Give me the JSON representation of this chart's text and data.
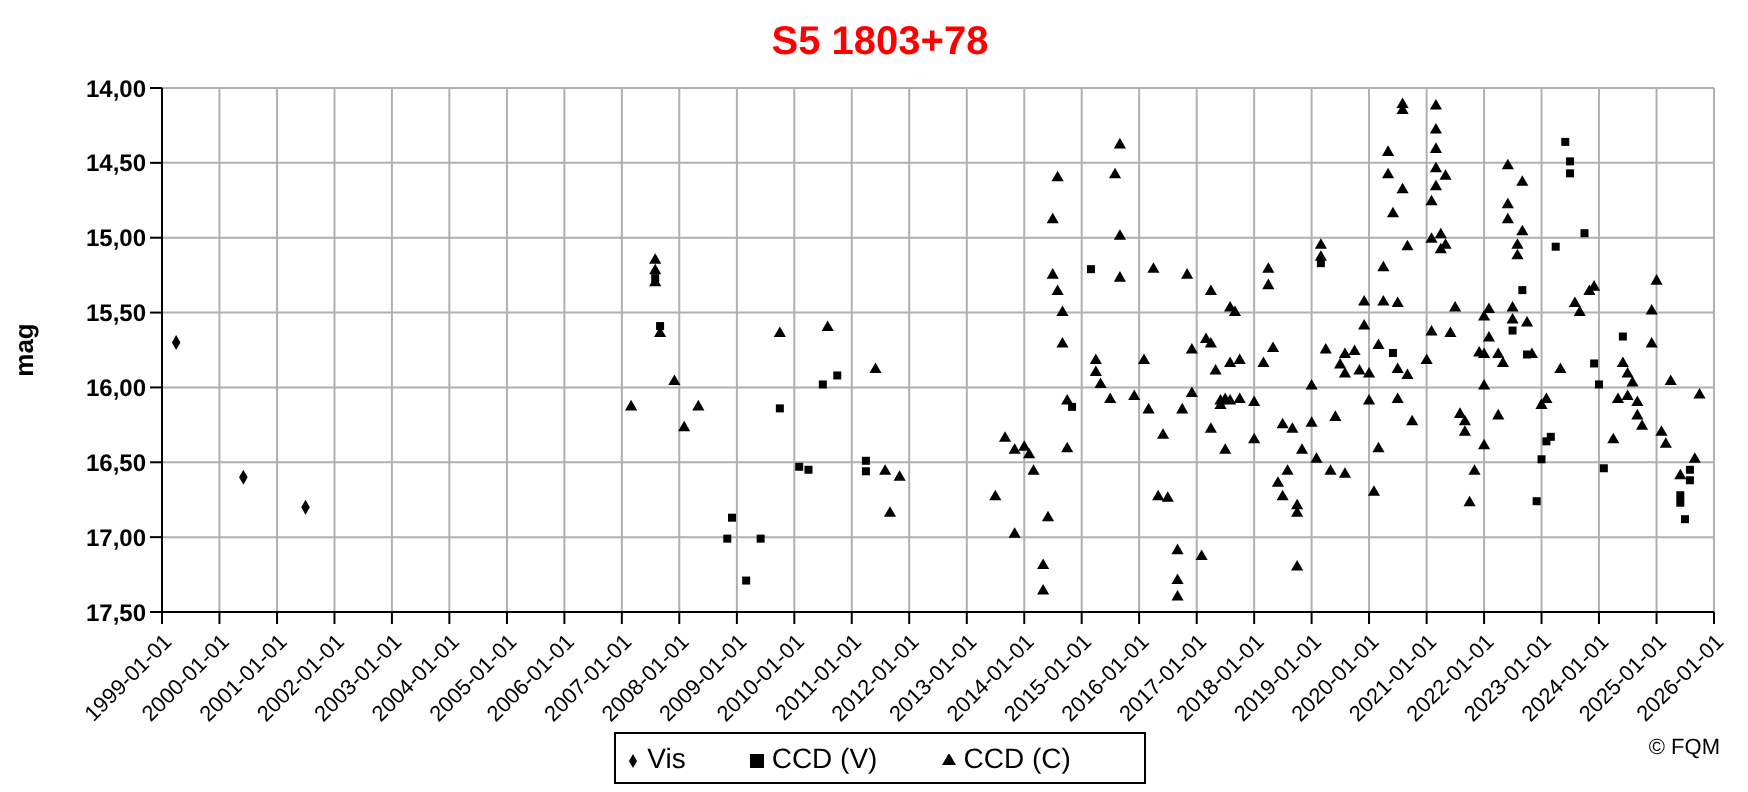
{
  "chart_data": {
    "type": "scatter",
    "title": "S5 1803+78",
    "ylabel": "mag",
    "annotations": [
      "© FQM"
    ],
    "xlim": [
      "1999-01-01",
      "2026-01-01"
    ],
    "xticks": [
      "1999-01-01",
      "2000-01-01",
      "2001-01-01",
      "2002-01-01",
      "2003-01-01",
      "2004-01-01",
      "2005-01-01",
      "2006-01-01",
      "2007-01-01",
      "2008-01-01",
      "2009-01-01",
      "2010-01-01",
      "2011-01-01",
      "2012-01-01",
      "2013-01-01",
      "2014-01-01",
      "2015-01-01",
      "2016-01-01",
      "2017-01-01",
      "2018-01-01",
      "2019-01-01",
      "2020-01-01",
      "2021-01-01",
      "2022-01-01",
      "2023-01-01",
      "2024-01-01",
      "2025-01-01",
      "2026-01-01"
    ],
    "ylim": [
      17.5,
      14
    ],
    "yticks": [
      {
        "value": 14,
        "label": "14,00"
      },
      {
        "value": 14.5,
        "label": "14,50"
      },
      {
        "value": 15,
        "label": "15,00"
      },
      {
        "value": 15.5,
        "label": "15,50"
      },
      {
        "value": 16,
        "label": "16,00"
      },
      {
        "value": 16.5,
        "label": "16,50"
      },
      {
        "value": 17,
        "label": "17,00"
      },
      {
        "value": 17.5,
        "label": "17,50"
      }
    ],
    "grid": true,
    "legend": "bottom",
    "series": [
      {
        "name": "Vis",
        "color": "#000000",
        "marker": "diamond",
        "x": [
          "1999-04",
          "2000-06",
          "2001-07"
        ],
        "values": [
          15.7,
          16.6,
          16.8
        ]
      },
      {
        "name": "CCD (V)",
        "color": "#000000",
        "marker": "square",
        "x": [
          "2007-08",
          "2007-09",
          "2008-11",
          "2008-12",
          "2009-03",
          "2009-06",
          "2009-10",
          "2010-02",
          "2010-04",
          "2010-07",
          "2010-10",
          "2011-04",
          "2011-04",
          "2014-11",
          "2015-03",
          "2019-03",
          "2020-06",
          "2022-07",
          "2022-09",
          "2022-10",
          "2022-12",
          "2023-01",
          "2023-02",
          "2023-03",
          "2023-04",
          "2023-06",
          "2023-07",
          "2023-07",
          "2023-10",
          "2023-12",
          "2024-01",
          "2024-02",
          "2024-06",
          "2025-06",
          "2025-06",
          "2025-07",
          "2025-08",
          "2025-08"
        ],
        "values": [
          15.27,
          15.59,
          17.01,
          16.87,
          17.29,
          17.01,
          16.14,
          16.53,
          16.55,
          15.98,
          15.92,
          16.49,
          16.56,
          16.13,
          15.21,
          15.17,
          15.77,
          15.62,
          15.35,
          15.78,
          16.76,
          16.48,
          16.36,
          16.33,
          15.06,
          14.36,
          14.49,
          14.57,
          14.97,
          15.84,
          15.98,
          16.54,
          15.66,
          16.72,
          16.77,
          16.88,
          16.62,
          16.55
        ]
      },
      {
        "name": "CCD (C)",
        "color": "#000000",
        "marker": "triangle",
        "x": [
          "2007-03",
          "2007-08",
          "2007-08",
          "2007-08",
          "2007-09",
          "2007-12",
          "2008-02",
          "2008-05",
          "2009-10",
          "2010-08",
          "2011-06",
          "2011-08",
          "2011-09",
          "2011-11",
          "2013-07",
          "2013-09",
          "2013-11",
          "2013-11",
          "2014-01",
          "2014-02",
          "2014-03",
          "2014-05",
          "2014-05",
          "2014-06",
          "2014-07",
          "2014-07",
          "2014-08",
          "2014-08",
          "2014-09",
          "2014-09",
          "2014-10",
          "2014-10",
          "2015-04",
          "2015-04",
          "2015-05",
          "2015-07",
          "2015-08",
          "2015-09",
          "2015-09",
          "2015-09",
          "2015-12",
          "2016-02",
          "2016-03",
          "2016-04",
          "2016-05",
          "2016-06",
          "2016-07",
          "2016-09",
          "2016-09",
          "2016-09",
          "2016-10",
          "2016-11",
          "2016-12",
          "2016-12",
          "2017-02",
          "2017-03",
          "2017-04",
          "2017-04",
          "2017-04",
          "2017-05",
          "2017-06",
          "2017-06",
          "2017-07",
          "2017-07",
          "2017-08",
          "2017-08",
          "2017-08",
          "2017-09",
          "2017-10",
          "2017-10",
          "2018-01",
          "2018-01",
          "2018-03",
          "2018-04",
          "2018-04",
          "2018-05",
          "2018-06",
          "2018-07",
          "2018-07",
          "2018-08",
          "2018-09",
          "2018-10",
          "2018-10",
          "2018-10",
          "2018-11",
          "2019-01",
          "2019-01",
          "2019-02",
          "2019-03",
          "2019-03",
          "2019-04",
          "2019-05",
          "2019-06",
          "2019-07",
          "2019-08",
          "2019-08",
          "2019-08",
          "2019-10",
          "2019-11",
          "2019-12",
          "2019-12",
          "2020-01",
          "2020-01",
          "2020-02",
          "2020-03",
          "2020-03",
          "2020-04",
          "2020-04",
          "2020-05",
          "2020-05",
          "2020-06",
          "2020-07",
          "2020-07",
          "2020-07",
          "2020-08",
          "2020-08",
          "2020-08",
          "2020-09",
          "2020-09",
          "2020-10",
          "2021-01",
          "2021-02",
          "2021-02",
          "2021-02",
          "2021-03",
          "2021-03",
          "2021-03",
          "2021-03",
          "2021-03",
          "2021-04",
          "2021-04",
          "2021-05",
          "2021-05",
          "2021-06",
          "2021-07",
          "2021-08",
          "2021-09",
          "2021-09",
          "2021-10",
          "2021-11",
          "2021-12",
          "2022-01",
          "2022-01",
          "2022-01",
          "2022-01",
          "2022-02",
          "2022-02",
          "2022-04",
          "2022-04",
          "2022-05",
          "2022-06",
          "2022-06",
          "2022-06",
          "2022-07",
          "2022-07",
          "2022-08",
          "2022-08",
          "2022-09",
          "2022-09",
          "2022-10",
          "2022-11",
          "2023-01",
          "2023-02",
          "2023-05",
          "2023-08",
          "2023-09",
          "2023-11",
          "2023-12",
          "2024-04",
          "2024-05",
          "2024-06",
          "2024-07",
          "2024-07",
          "2024-08",
          "2024-09",
          "2024-09",
          "2024-10",
          "2024-12",
          "2024-12",
          "2025-01",
          "2025-02",
          "2025-03",
          "2025-04",
          "2025-06",
          "2025-09",
          "2025-10"
        ],
        "values": [
          16.13,
          15.15,
          15.22,
          15.3,
          15.64,
          15.96,
          16.27,
          16.13,
          15.64,
          15.6,
          15.88,
          16.56,
          16.84,
          16.6,
          16.73,
          16.34,
          16.98,
          16.42,
          16.4,
          16.45,
          16.56,
          17.19,
          17.36,
          16.87,
          15.25,
          14.88,
          14.6,
          15.36,
          15.71,
          15.5,
          16.41,
          16.09,
          15.82,
          15.9,
          15.98,
          16.08,
          14.58,
          14.38,
          14.99,
          15.27,
          16.06,
          15.82,
          16.15,
          15.21,
          16.73,
          16.32,
          16.74,
          17.09,
          17.4,
          17.29,
          16.15,
          15.25,
          15.75,
          16.04,
          17.13,
          15.68,
          15.71,
          15.36,
          16.28,
          15.89,
          16.09,
          16.12,
          16.08,
          16.42,
          16.09,
          15.84,
          15.47,
          15.5,
          16.08,
          15.82,
          16.35,
          16.1,
          15.84,
          15.32,
          15.21,
          15.74,
          16.64,
          16.73,
          16.25,
          16.56,
          16.28,
          16.79,
          16.84,
          17.2,
          16.42,
          15.99,
          16.24,
          16.48,
          15.05,
          15.13,
          15.75,
          16.56,
          16.2,
          15.85,
          16.58,
          15.91,
          15.78,
          15.76,
          15.89,
          15.59,
          15.43,
          15.91,
          16.09,
          16.7,
          16.41,
          15.72,
          15.2,
          15.43,
          14.58,
          14.43,
          14.84,
          15.44,
          16.08,
          15.88,
          14.11,
          14.15,
          14.68,
          15.06,
          15.92,
          16.23,
          15.82,
          15.63,
          15.01,
          14.76,
          14.66,
          14.54,
          14.41,
          14.12,
          14.28,
          14.98,
          15.08,
          15.05,
          14.59,
          15.64,
          15.47,
          16.18,
          16.23,
          16.3,
          16.77,
          16.56,
          15.77,
          15.99,
          15.53,
          15.78,
          16.39,
          15.48,
          15.67,
          15.78,
          16.19,
          15.84,
          14.52,
          14.78,
          14.88,
          15.47,
          15.55,
          15.05,
          15.12,
          14.96,
          14.63,
          15.57,
          15.78,
          16.12,
          16.08,
          15.88,
          15.44,
          15.5,
          15.36,
          15.33,
          16.35,
          16.08,
          15.84,
          15.91,
          16.06,
          15.97,
          16.1,
          16.19,
          16.26,
          15.71,
          15.49,
          15.29,
          16.3,
          16.38,
          15.96,
          16.59,
          16.48,
          16.05
        ]
      }
    ]
  }
}
